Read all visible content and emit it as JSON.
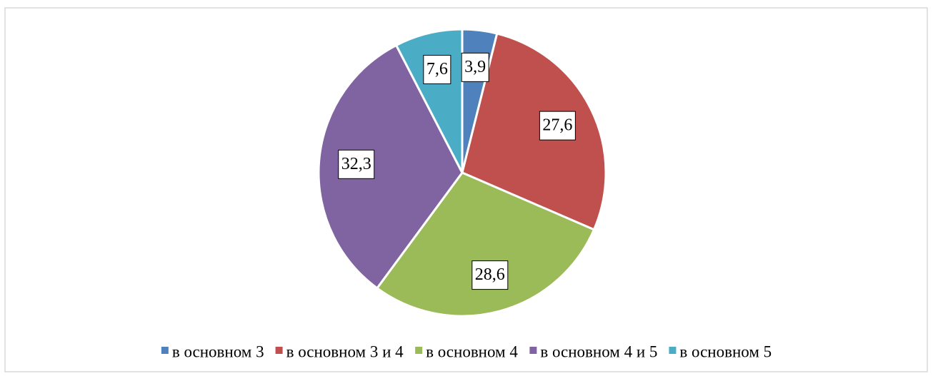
{
  "chart_data": {
    "type": "pie",
    "categories": [
      "в основном 3",
      "в основном 3 и 4",
      "в основном 4",
      "в основном 4 и 5",
      "в основном 5"
    ],
    "values": [
      3.9,
      27.6,
      28.6,
      32.3,
      7.6
    ],
    "value_labels": [
      "3,9",
      "27,6",
      "28,6",
      "32,3",
      "7,6"
    ],
    "colors": [
      "#4f81bd",
      "#c0504d",
      "#9bbb59",
      "#8064a2",
      "#4bacc6"
    ],
    "legend": "bottom"
  }
}
